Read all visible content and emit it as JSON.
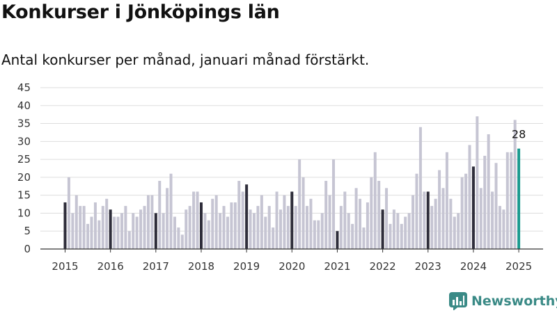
{
  "title": "Konkurser i Jönköpings län",
  "subtitle": "Antal konkurser per månad, januari månad förstärkt.",
  "brand": {
    "name": "Newsworthy",
    "icon": "bar-chart-logo-icon",
    "color": "#3a8a86"
  },
  "colors": {
    "regular": "#c6c5d3",
    "january": "#2e2d3a",
    "latest": "#1a9a8f",
    "grid": "#dddddd"
  },
  "chart_data": {
    "type": "bar",
    "ylim": [
      0,
      45
    ],
    "yticks": [
      0,
      5,
      10,
      15,
      20,
      25,
      30,
      35,
      40,
      45
    ],
    "xtick_labels": [
      "2015",
      "2016",
      "2017",
      "2018",
      "2019",
      "2020",
      "2021",
      "2022",
      "2023",
      "2024",
      "2025"
    ],
    "grid": true,
    "highlight": "january",
    "latest_label": "28",
    "years": [
      {
        "year": 2015,
        "values": [
          13,
          20,
          10,
          15,
          12,
          12,
          7,
          9,
          13,
          8,
          12,
          14
        ]
      },
      {
        "year": 2016,
        "values": [
          11,
          9,
          9,
          10,
          12,
          5,
          10,
          9,
          11,
          12,
          15,
          15
        ]
      },
      {
        "year": 2017,
        "values": [
          10,
          19,
          10,
          17,
          21,
          9,
          6,
          4,
          11,
          12,
          16,
          16
        ]
      },
      {
        "year": 2018,
        "values": [
          13,
          10,
          8,
          14,
          15,
          10,
          12,
          9,
          13,
          13,
          19,
          16
        ]
      },
      {
        "year": 2019,
        "values": [
          18,
          11,
          10,
          12,
          15,
          9,
          12,
          6,
          16,
          11,
          15,
          12
        ]
      },
      {
        "year": 2020,
        "values": [
          16,
          12,
          25,
          20,
          12,
          14,
          8,
          8,
          10,
          19,
          15,
          25
        ]
      },
      {
        "year": 2021,
        "values": [
          5,
          12,
          16,
          10,
          7,
          17,
          14,
          6,
          13,
          20,
          27,
          19
        ]
      },
      {
        "year": 2022,
        "values": [
          11,
          17,
          7,
          11,
          10,
          7,
          9,
          10,
          15,
          21,
          34,
          16
        ]
      },
      {
        "year": 2023,
        "values": [
          16,
          12,
          14,
          22,
          17,
          27,
          14,
          9,
          10,
          20,
          21,
          29
        ]
      },
      {
        "year": 2024,
        "values": [
          23,
          37,
          17,
          26,
          32,
          16,
          24,
          12,
          11,
          27,
          27,
          36
        ]
      },
      {
        "year": 2025,
        "values": [
          28
        ]
      }
    ]
  }
}
